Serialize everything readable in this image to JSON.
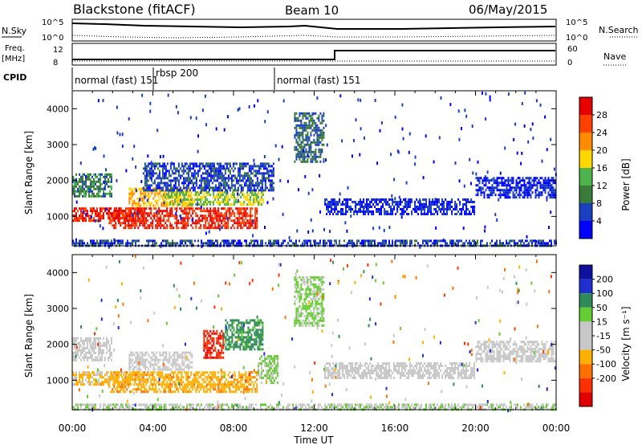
{
  "header": {
    "station": "Blackstone (fitACF)",
    "beam": "Beam 10",
    "date": "06/May/2015"
  },
  "top_panels": {
    "nsky_label": "N.Sky",
    "nsearch_label": "N.Search",
    "log_scale_top": "10^5",
    "log_scale_bottom": "10^0",
    "freq_label": "Freq.",
    "freq_unit": "[MHz]",
    "freq_ticks": [
      "12",
      "8"
    ],
    "nave_label": "Nave",
    "nave_ticks": [
      "60",
      "0"
    ],
    "cpid_label": "CPID",
    "modes": [
      {
        "name": "normal (fast) 151",
        "start_h": 0
      },
      {
        "name": "rbsp 200",
        "start_h": 4
      },
      {
        "name": "normal (fast) 151",
        "start_h": 10
      }
    ]
  },
  "colors": {
    "power_scale": [
      "#0000ff",
      "#1a3fbf",
      "#3a7a3a",
      "#4db34d",
      "#ffd700",
      "#ff8c00",
      "#ff4000",
      "#e60000"
    ],
    "velocity_scale": [
      "#1010a0",
      "#2030d0",
      "#2e8b57",
      "#66cc33",
      "#c8c8c8",
      "#c8c8c8",
      "#ffb000",
      "#ff7000",
      "#ff3000",
      "#e00000"
    ]
  },
  "chart_data": [
    {
      "type": "heatmap",
      "ylabel": "Slant Range [km]",
      "xlabel": "",
      "ylim": [
        180,
        4500
      ],
      "xlim": [
        0,
        24
      ],
      "yticks": [
        "1000",
        "2000",
        "3000",
        "4000"
      ],
      "colorbar": {
        "label": "Power [dB]",
        "ticks": [
          "4",
          "8",
          "12",
          "16",
          "20",
          "24",
          "28"
        ],
        "range": [
          0,
          32
        ]
      },
      "regions": [
        {
          "x": [
            0,
            3.6
          ],
          "y": [
            850,
            1250
          ],
          "value": 28
        },
        {
          "x": [
            2.8,
            6.0
          ],
          "y": [
            1250,
            1800
          ],
          "value": 20
        },
        {
          "x": [
            0,
            2.0
          ],
          "y": [
            1500,
            2200
          ],
          "value": 10
        },
        {
          "x": [
            1.8,
            9.2
          ],
          "y": [
            650,
            1250
          ],
          "value": 28
        },
        {
          "x": [
            4.5,
            9.5
          ],
          "y": [
            1300,
            1700
          ],
          "value": 16
        },
        {
          "x": [
            3.5,
            10.0
          ],
          "y": [
            1700,
            2500
          ],
          "value": 6
        },
        {
          "x": [
            11.0,
            12.5
          ],
          "y": [
            2500,
            3900
          ],
          "value": 8
        },
        {
          "x": [
            12.5,
            20.0
          ],
          "y": [
            1000,
            1500
          ],
          "value": 4
        },
        {
          "x": [
            20.0,
            24.0
          ],
          "y": [
            1500,
            2100
          ],
          "value": 4
        },
        {
          "x": [
            0,
            24
          ],
          "y": [
            180,
            350
          ],
          "value": 6
        }
      ]
    },
    {
      "type": "heatmap",
      "ylabel": "Slant Range [km]",
      "xlabel": "Time UT",
      "ylim": [
        180,
        4500
      ],
      "xlim": [
        0,
        24
      ],
      "yticks": [
        "1000",
        "2000",
        "3000",
        "4000"
      ],
      "xticks": [
        "00:00",
        "04:00",
        "08:00",
        "12:00",
        "16:00",
        "20:00",
        "00:00"
      ],
      "colorbar": {
        "label": "Velocity [m s⁻¹]",
        "ticks": [
          "200",
          "100",
          "50",
          "15",
          "-15",
          "-50",
          "-100",
          "-200"
        ],
        "range": [
          -250,
          250
        ]
      },
      "regions": [
        {
          "x": [
            0,
            3.6
          ],
          "y": [
            850,
            1250
          ],
          "value": -60
        },
        {
          "x": [
            0,
            2.0
          ],
          "y": [
            1500,
            2200
          ],
          "value": 0
        },
        {
          "x": [
            2.8,
            6.0
          ],
          "y": [
            1250,
            1800
          ],
          "value": 0
        },
        {
          "x": [
            1.8,
            9.2
          ],
          "y": [
            650,
            1250
          ],
          "value": -80
        },
        {
          "x": [
            6.5,
            7.5
          ],
          "y": [
            1600,
            2400
          ],
          "value": -200
        },
        {
          "x": [
            7.5,
            9.5
          ],
          "y": [
            1800,
            2700
          ],
          "value": 120
        },
        {
          "x": [
            9.2,
            10.2
          ],
          "y": [
            900,
            1700
          ],
          "value": 60
        },
        {
          "x": [
            11.0,
            12.5
          ],
          "y": [
            2500,
            3900
          ],
          "value": 60
        },
        {
          "x": [
            12.5,
            20.0
          ],
          "y": [
            1000,
            1500
          ],
          "value": 0
        },
        {
          "x": [
            20.0,
            24.0
          ],
          "y": [
            1500,
            2100
          ],
          "value": 0
        },
        {
          "x": [
            0,
            24
          ],
          "y": [
            180,
            350
          ],
          "value": 40
        }
      ]
    }
  ]
}
